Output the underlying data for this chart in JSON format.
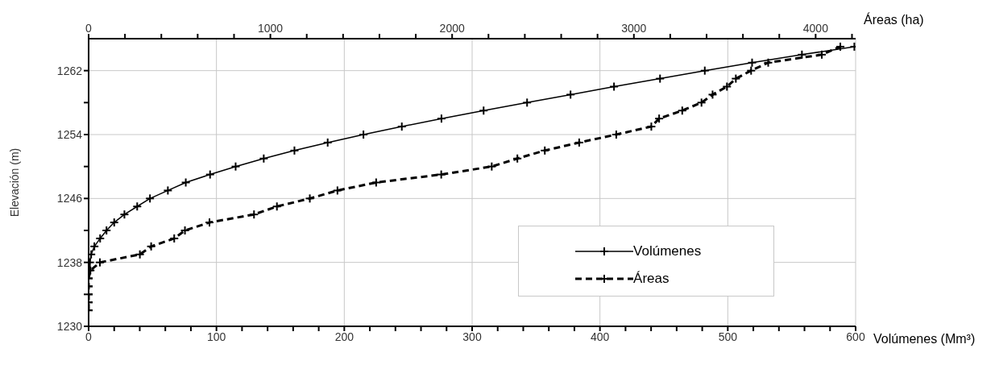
{
  "chart_data": {
    "type": "line",
    "ylabel": "Elevación (m)",
    "xlabel": "Volúmenes (Mm³)",
    "x2label": "Áreas (ha)",
    "xlim": [
      0,
      600
    ],
    "xticks": [
      0,
      {
        "value": 20,
        "label": null
      },
      {
        "value": 40,
        "label": null
      },
      {
        "value": 60,
        "label": null
      },
      {
        "value": 80,
        "label": null
      },
      100,
      {
        "value": 120,
        "label": null
      },
      {
        "value": 140,
        "label": null
      },
      {
        "value": 160,
        "label": null
      },
      {
        "value": 180,
        "label": null
      },
      200,
      {
        "value": 220,
        "label": null
      },
      {
        "value": 240,
        "label": null
      },
      {
        "value": 260,
        "label": null
      },
      {
        "value": 280,
        "label": null
      },
      300,
      {
        "value": 320,
        "label": null
      },
      {
        "value": 340,
        "label": null
      },
      {
        "value": 360,
        "label": null
      },
      {
        "value": 380,
        "label": null
      },
      400,
      {
        "value": 420,
        "label": null
      },
      {
        "value": 440,
        "label": null
      },
      {
        "value": 460,
        "label": null
      },
      {
        "value": 480,
        "label": null
      },
      500,
      {
        "value": 520,
        "label": null
      },
      {
        "value": 540,
        "label": null
      },
      {
        "value": 560,
        "label": null
      },
      {
        "value": 580,
        "label": null
      },
      600
    ],
    "x2lim": [
      0,
      4220
    ],
    "x2ticks": [
      0,
      {
        "value": 200,
        "label": null
      },
      {
        "value": 400,
        "label": null
      },
      {
        "value": 600,
        "label": null
      },
      {
        "value": 800,
        "label": null
      },
      1000,
      {
        "value": 1200,
        "label": null
      },
      {
        "value": 1400,
        "label": null
      },
      {
        "value": 1600,
        "label": null
      },
      {
        "value": 1800,
        "label": null
      },
      2000,
      {
        "value": 2200,
        "label": null
      },
      {
        "value": 2400,
        "label": null
      },
      {
        "value": 2600,
        "label": null
      },
      {
        "value": 2800,
        "label": null
      },
      3000,
      {
        "value": 3200,
        "label": null
      },
      {
        "value": 3400,
        "label": null
      },
      {
        "value": 3600,
        "label": null
      },
      {
        "value": 3800,
        "label": null
      },
      4000,
      {
        "value": 4200,
        "label": null
      }
    ],
    "ylim": [
      1230,
      1266
    ],
    "yticks": [
      1230,
      {
        "value": 1234,
        "label": null
      },
      1238,
      {
        "value": 1242,
        "label": null
      },
      1246,
      {
        "value": 1250,
        "label": null
      },
      1254,
      {
        "value": 1258,
        "label": null
      },
      1262
    ],
    "grid": true,
    "legend": "bottom right",
    "marker": "cross",
    "series": [
      {
        "name": "Volúmenes",
        "color": "#000000",
        "line_style": "solid",
        "x": [
          0,
          0,
          0,
          0,
          0,
          0.5,
          1,
          2,
          4.5,
          9,
          14,
          20,
          28,
          38,
          48,
          62,
          76,
          95,
          115,
          137,
          161,
          187,
          215,
          245,
          276,
          309,
          343,
          377,
          411,
          447,
          482,
          519,
          558,
          599
        ],
        "values": [
          1232,
          1233,
          1234,
          1235,
          1236,
          1237,
          1238,
          1239,
          1240,
          1241,
          1242,
          1243,
          1244,
          1245,
          1246,
          1247,
          1248,
          1249,
          1250,
          1251,
          1252,
          1253,
          1254,
          1255,
          1256,
          1257,
          1258,
          1259,
          1260,
          1261,
          1262,
          1263,
          1264,
          1265
        ]
      },
      {
        "name": "Áreas",
        "color": "#000000",
        "line_style": "dashed",
        "axis": "x2",
        "x": [
          0,
          0,
          0,
          0,
          0,
          10,
          62,
          282,
          344,
          471,
          530,
          665,
          910,
          1036,
          1217,
          1369,
          1582,
          1940,
          2218,
          2359,
          2510,
          2699,
          2903,
          3096,
          3139,
          3266,
          3372,
          3433,
          3512,
          3561,
          3645,
          3739,
          4034,
          4136
        ],
        "values": [
          1232,
          1233,
          1234,
          1235,
          1236,
          1237,
          1238,
          1239,
          1240,
          1241,
          1242,
          1243,
          1244,
          1245,
          1246,
          1247,
          1248,
          1249,
          1250,
          1251,
          1252,
          1253,
          1254,
          1255,
          1256,
          1257,
          1258,
          1259,
          1260,
          1261,
          1262,
          1263,
          1264,
          1265
        ]
      }
    ]
  }
}
